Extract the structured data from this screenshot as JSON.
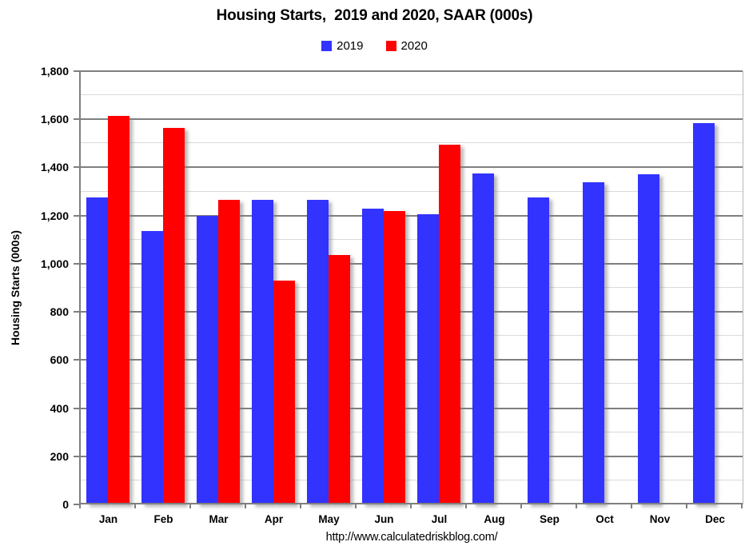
{
  "footer_url": "http://www.calculatedriskblog.com/",
  "chart_data": {
    "type": "bar",
    "title": "Housing Starts,  2019 and 2020, SAAR (000s)",
    "xlabel": "",
    "ylabel": "Housing Starts (000s)",
    "ylim": [
      0,
      1800
    ],
    "y_major_step": 200,
    "y_minor_step": 100,
    "grid": true,
    "legend_position": "top-center",
    "categories": [
      "Jan",
      "Feb",
      "Mar",
      "Apr",
      "May",
      "Jun",
      "Jul",
      "Aug",
      "Sep",
      "Oct",
      "Nov",
      "Dec"
    ],
    "series": [
      {
        "name": "2019",
        "color": "#3333FF",
        "values": [
          1275,
          1135,
          1200,
          1265,
          1265,
          1230,
          1205,
          1375,
          1275,
          1340,
          1370,
          1585
        ]
      },
      {
        "name": "2020",
        "color": "#FF0000",
        "values": [
          1615,
          1565,
          1265,
          930,
          1035,
          1220,
          1495,
          null,
          null,
          null,
          null,
          null
        ]
      }
    ]
  }
}
